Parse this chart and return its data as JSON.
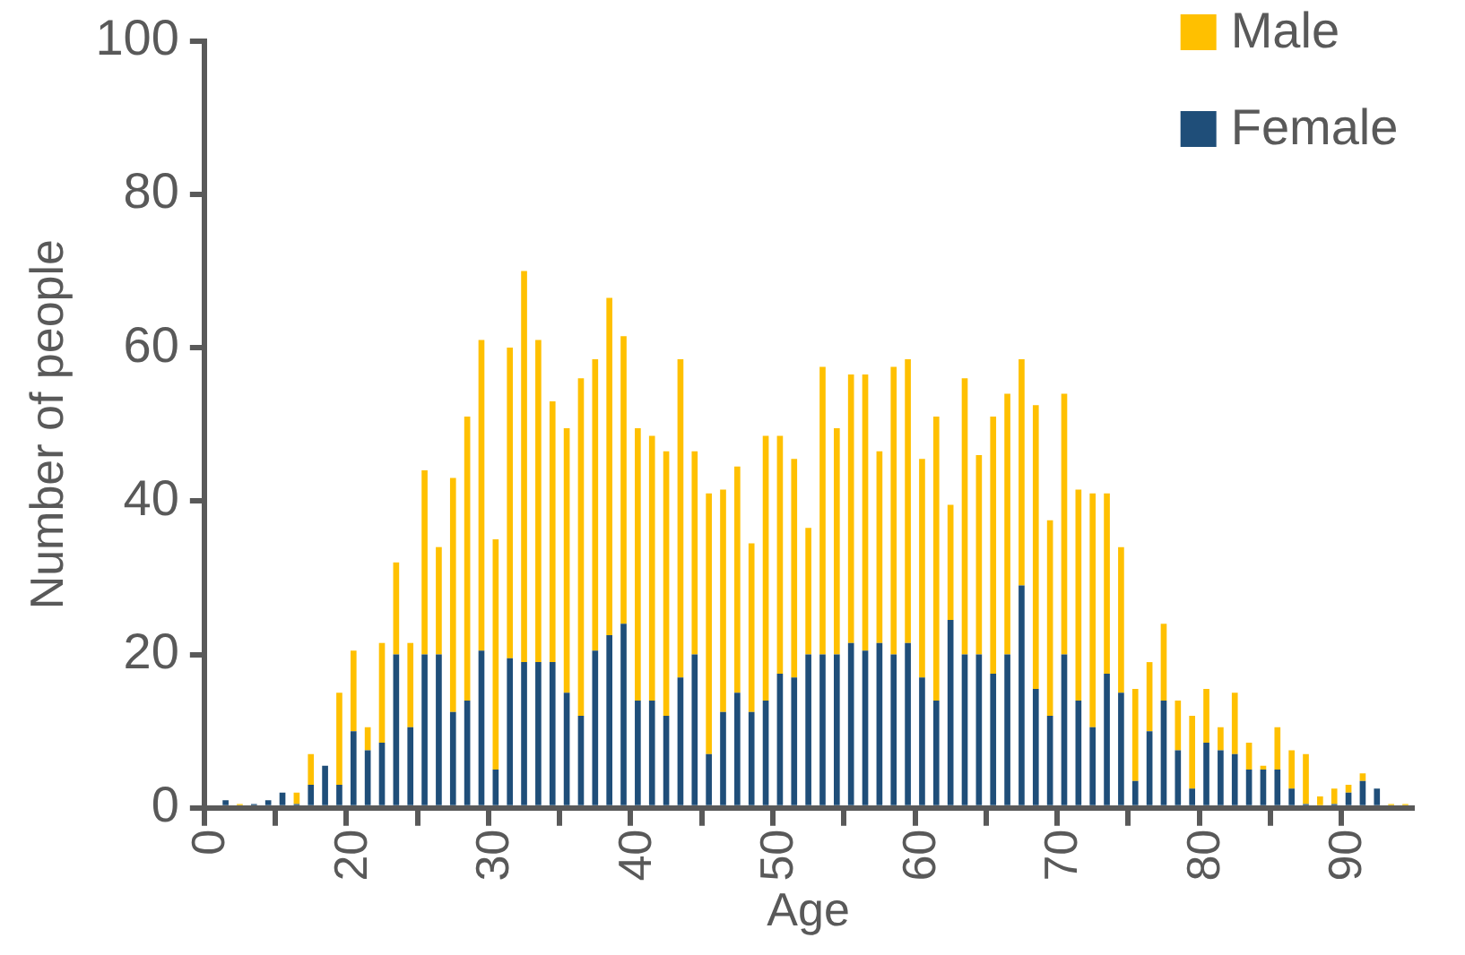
{
  "chart_data": {
    "type": "bar",
    "stacked": true,
    "xlabel": "Age",
    "ylabel": "Number of people",
    "categories": [
      "0",
      null,
      null,
      null,
      null,
      null,
      null,
      null,
      null,
      null,
      "20",
      null,
      null,
      null,
      null,
      null,
      null,
      null,
      null,
      null,
      "30",
      null,
      null,
      null,
      null,
      null,
      null,
      null,
      null,
      null,
      "40",
      null,
      null,
      null,
      null,
      null,
      null,
      null,
      null,
      null,
      "50",
      null,
      null,
      null,
      null,
      null,
      null,
      null,
      null,
      null,
      "60",
      null,
      null,
      null,
      null,
      null,
      null,
      null,
      null,
      null,
      "70",
      null,
      null,
      null,
      null,
      null,
      null,
      null,
      null,
      null,
      "80",
      null,
      null,
      null,
      null,
      null,
      null,
      null,
      null,
      null,
      "90",
      null,
      null,
      null,
      null
    ],
    "series": [
      {
        "name": "Female",
        "color": "#1f4e79",
        "values": [
          0,
          1,
          0,
          0.5,
          1,
          2,
          0.5,
          3,
          5.5,
          3,
          10,
          7.5,
          8.5,
          20,
          10.5,
          20,
          20,
          12.5,
          14,
          20.5,
          5,
          19.5,
          19,
          19,
          19,
          15,
          12,
          20.5,
          22.5,
          24,
          14,
          14,
          12,
          17,
          20,
          7,
          12.5,
          15,
          12.5,
          14,
          17.5,
          17,
          20,
          20,
          20,
          21.5,
          20.5,
          21.5,
          20,
          21.5,
          17,
          14,
          24.5,
          20,
          20,
          17.5,
          20,
          29,
          15.5,
          12,
          20,
          14,
          10.5,
          17.5,
          15,
          3.5,
          10,
          14,
          7.5,
          2.5,
          8.5,
          7.5,
          7,
          5,
          5,
          5,
          2.5,
          0.5,
          0,
          0.5,
          2,
          3.5,
          2.5,
          0,
          0
        ]
      },
      {
        "name": "Male",
        "color": "#ffc000",
        "values": [
          0,
          0,
          0.5,
          0,
          0,
          0,
          1.5,
          4,
          0,
          12,
          10.5,
          3,
          13,
          12,
          11,
          24,
          14,
          30.5,
          37,
          40.5,
          30,
          40.5,
          51,
          42,
          34,
          34.5,
          44,
          38,
          44,
          37.5,
          35.5,
          34.5,
          34.5,
          41.5,
          26.5,
          34,
          29,
          29.5,
          22,
          34.5,
          31,
          28.5,
          16.5,
          37.5,
          29.5,
          35,
          36,
          25,
          37.5,
          37,
          28.5,
          37,
          15,
          36,
          26,
          33.5,
          34,
          29.5,
          37,
          25.5,
          34,
          27.5,
          30.5,
          23.5,
          19,
          12,
          9,
          10,
          6.5,
          9.5,
          7,
          3,
          8,
          3.5,
          0.5,
          5.5,
          5,
          6.5,
          1.5,
          2,
          1,
          1,
          0,
          0.5,
          0.5
        ]
      }
    ],
    "ylim": [
      0,
      100
    ],
    "yticks": [
      0,
      20,
      40,
      60,
      80,
      100
    ],
    "grid": false,
    "legend": "top right"
  }
}
